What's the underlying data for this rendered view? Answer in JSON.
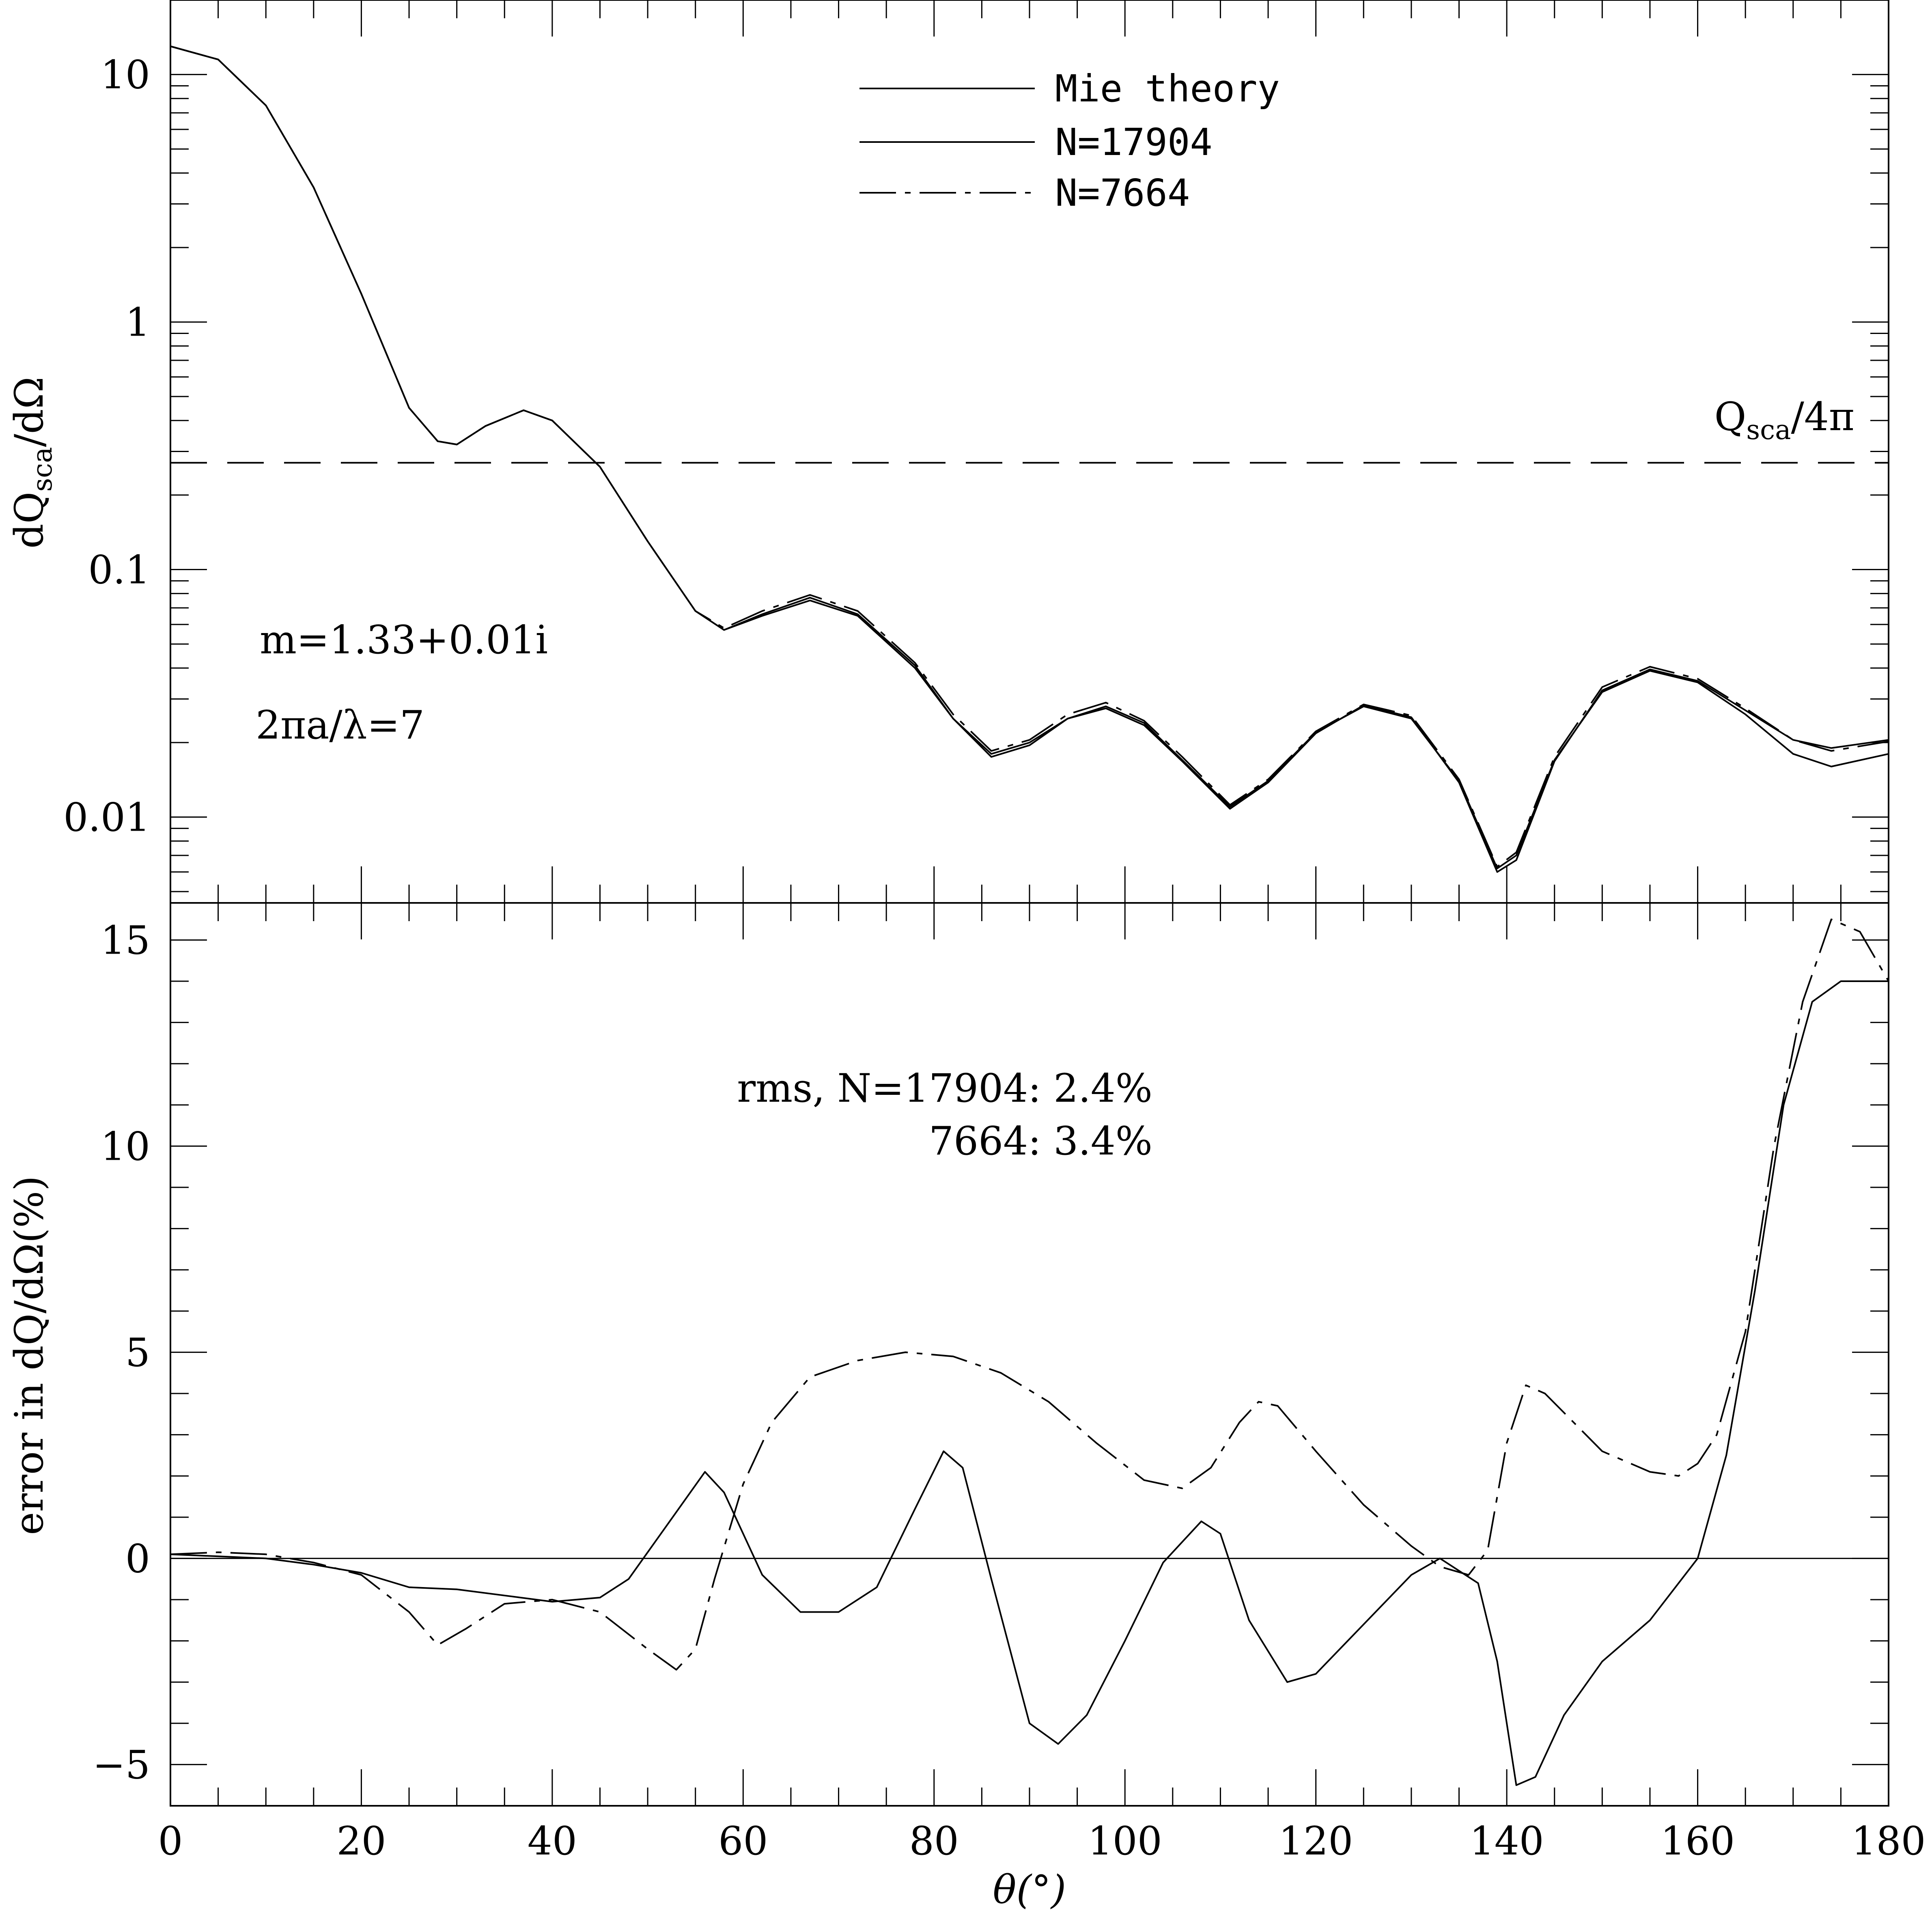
{
  "chart_data": [
    {
      "type": "line",
      "title": "",
      "xlabel": "",
      "ylabel": "dQsca/dΩ",
      "ylabel_parts": {
        "main": "dQ",
        "sub": "sca",
        "rest": "/dΩ"
      },
      "yscale": "log",
      "xlim": [
        0,
        180
      ],
      "ylim": [
        0.0045,
        20
      ],
      "yticks": [
        {
          "value": 0.01,
          "label": "0.01"
        },
        {
          "value": 0.1,
          "label": "0.1"
        },
        {
          "value": 1,
          "label": "1"
        },
        {
          "value": 10,
          "label": "10"
        }
      ],
      "legend": {
        "position": "top-center",
        "entries": [
          {
            "label": "Mie theory",
            "style": "solid"
          },
          {
            "label": "N=17904",
            "style": "solid"
          },
          {
            "label": "N=7664",
            "style": "dashdot"
          }
        ]
      },
      "reference_line": {
        "value": 0.27,
        "style": "dashed",
        "label_main": "Q",
        "label_sub": "sca",
        "label_rest": "/4π"
      },
      "annotations": [
        "m=1.33+0.01i",
        "2πa/λ=7"
      ],
      "series": [
        {
          "name": "Mie theory",
          "style": "solid",
          "x": [
            0,
            5,
            10,
            15,
            20,
            25,
            28,
            30,
            33,
            37,
            40,
            45,
            50,
            55,
            58,
            62,
            67,
            72,
            78,
            82,
            86,
            90,
            94,
            98,
            102,
            106,
            111,
            115,
            120,
            125,
            130,
            135,
            139,
            141,
            145,
            150,
            155,
            160,
            165,
            170,
            174,
            180
          ],
          "y": [
            13,
            11.5,
            7.5,
            3.5,
            1.3,
            0.45,
            0.33,
            0.32,
            0.38,
            0.44,
            0.4,
            0.26,
            0.13,
            0.068,
            0.057,
            0.065,
            0.075,
            0.065,
            0.04,
            0.025,
            0.018,
            0.02,
            0.025,
            0.028,
            0.024,
            0.017,
            0.011,
            0.014,
            0.022,
            0.028,
            0.025,
            0.014,
            0.0062,
            0.007,
            0.017,
            0.032,
            0.039,
            0.035,
            0.026,
            0.018,
            0.016,
            0.018
          ]
        },
        {
          "name": "N=17904",
          "style": "solid",
          "x": [
            0,
            5,
            10,
            15,
            20,
            25,
            28,
            30,
            33,
            37,
            40,
            45,
            50,
            55,
            58,
            62,
            67,
            72,
            78,
            82,
            86,
            90,
            94,
            98,
            102,
            106,
            111,
            115,
            120,
            125,
            130,
            135,
            139,
            141,
            145,
            150,
            155,
            160,
            165,
            170,
            174,
            180
          ],
          "y": [
            13,
            11.5,
            7.5,
            3.5,
            1.3,
            0.45,
            0.33,
            0.32,
            0.38,
            0.44,
            0.4,
            0.26,
            0.13,
            0.068,
            0.057,
            0.066,
            0.077,
            0.066,
            0.041,
            0.025,
            0.0175,
            0.0195,
            0.025,
            0.0275,
            0.0235,
            0.0168,
            0.0108,
            0.0138,
            0.0218,
            0.0283,
            0.0253,
            0.0138,
            0.006,
            0.0067,
            0.0168,
            0.0325,
            0.0395,
            0.0355,
            0.027,
            0.0205,
            0.019,
            0.0205
          ]
        },
        {
          "name": "N=7664",
          "style": "dashdot",
          "x": [
            0,
            5,
            10,
            15,
            20,
            25,
            28,
            30,
            33,
            37,
            40,
            45,
            50,
            55,
            58,
            62,
            67,
            72,
            78,
            82,
            86,
            90,
            94,
            98,
            102,
            106,
            111,
            115,
            120,
            125,
            130,
            135,
            139,
            141,
            145,
            150,
            155,
            160,
            165,
            170,
            174,
            180
          ],
          "y": [
            13,
            11.5,
            7.5,
            3.5,
            1.3,
            0.45,
            0.33,
            0.32,
            0.38,
            0.44,
            0.4,
            0.26,
            0.13,
            0.068,
            0.058,
            0.068,
            0.079,
            0.068,
            0.042,
            0.026,
            0.0185,
            0.0205,
            0.026,
            0.029,
            0.0245,
            0.0175,
            0.0112,
            0.0142,
            0.0222,
            0.0285,
            0.0257,
            0.0142,
            0.0063,
            0.0072,
            0.0175,
            0.0335,
            0.0405,
            0.0362,
            0.0275,
            0.0205,
            0.0185,
            0.0202
          ]
        }
      ]
    },
    {
      "type": "line",
      "title": "",
      "xlabel": "θ(°)",
      "ylabel": "error in dQ/dΩ(%)",
      "xlim": [
        0,
        180
      ],
      "ylim": [
        -6,
        15.9
      ],
      "xticks": [
        {
          "value": 0,
          "label": "0"
        },
        {
          "value": 20,
          "label": "20"
        },
        {
          "value": 40,
          "label": "40"
        },
        {
          "value": 60,
          "label": "60"
        },
        {
          "value": 80,
          "label": "80"
        },
        {
          "value": 100,
          "label": "100"
        },
        {
          "value": 120,
          "label": "120"
        },
        {
          "value": 140,
          "label": "140"
        },
        {
          "value": 160,
          "label": "160"
        },
        {
          "value": 180,
          "label": "180"
        }
      ],
      "yticks": [
        {
          "value": -5,
          "label": "−5"
        },
        {
          "value": 0,
          "label": "0"
        },
        {
          "value": 5,
          "label": "5"
        },
        {
          "value": 10,
          "label": "10"
        },
        {
          "value": 15,
          "label": "15"
        }
      ],
      "reference_line": {
        "value": 0,
        "style": "solid"
      },
      "annotations": [
        "rms, N=17904: 2.4%",
        "7664: 3.4%"
      ],
      "series": [
        {
          "name": "N=17904",
          "style": "solid",
          "x": [
            0,
            5,
            10,
            15,
            20,
            25,
            30,
            35,
            40,
            45,
            48,
            52,
            56,
            58,
            62,
            66,
            70,
            74,
            78,
            81,
            83,
            86,
            90,
            93,
            96,
            100,
            104,
            108,
            110,
            113,
            117,
            120,
            125,
            130,
            133,
            135,
            137,
            139,
            141,
            143,
            146,
            150,
            155,
            160,
            163,
            166,
            169,
            172,
            175,
            180
          ],
          "y": [
            0.1,
            0.05,
            0,
            -0.15,
            -0.35,
            -0.7,
            -0.75,
            -0.9,
            -1.05,
            -0.95,
            -0.5,
            0.8,
            2.1,
            1.6,
            -0.4,
            -1.3,
            -1.3,
            -0.7,
            1.2,
            2.6,
            2.2,
            -0.5,
            -4.0,
            -4.5,
            -3.8,
            -2.0,
            -0.1,
            0.9,
            0.6,
            -1.5,
            -3.0,
            -2.8,
            -1.6,
            -0.4,
            0,
            -0.3,
            -0.6,
            -2.5,
            -5.5,
            -5.3,
            -3.8,
            -2.5,
            -1.5,
            0,
            2.5,
            6.5,
            11.0,
            13.5,
            14.0,
            14.0
          ]
        },
        {
          "name": "N=7664",
          "style": "dashdot",
          "x": [
            0,
            5,
            10,
            15,
            20,
            25,
            28,
            31,
            35,
            40,
            45,
            50,
            53,
            55,
            57,
            60,
            63,
            67,
            72,
            77,
            82,
            87,
            92,
            97,
            102,
            106,
            109,
            112,
            114,
            116,
            120,
            125,
            130,
            133,
            136,
            138,
            140,
            142,
            144,
            147,
            150,
            155,
            158,
            160,
            162,
            165,
            168,
            171,
            174,
            177,
            180
          ],
          "y": [
            0.1,
            0.15,
            0.1,
            -0.1,
            -0.4,
            -1.3,
            -2.1,
            -1.7,
            -1.1,
            -1.0,
            -1.3,
            -2.2,
            -2.7,
            -2.2,
            -0.5,
            1.8,
            3.3,
            4.4,
            4.8,
            5.0,
            4.9,
            4.5,
            3.8,
            2.8,
            1.9,
            1.7,
            2.2,
            3.3,
            3.8,
            3.7,
            2.6,
            1.3,
            0.3,
            -0.2,
            -0.4,
            0.2,
            2.8,
            4.2,
            4.0,
            3.3,
            2.6,
            2.1,
            2.0,
            2.3,
            3.0,
            5.5,
            10.0,
            13.5,
            15.5,
            15.2,
            14.0
          ]
        }
      ]
    }
  ]
}
